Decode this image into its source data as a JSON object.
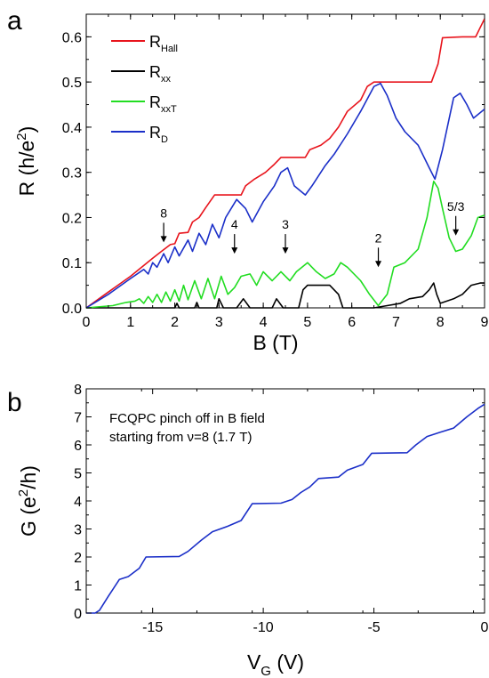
{
  "panel_a": {
    "label": "a",
    "legend": [
      {
        "name": "R",
        "sub": "Hall",
        "color": "#e8141c"
      },
      {
        "name": "R",
        "sub": "xx",
        "color": "#000000"
      },
      {
        "name": "R",
        "sub": "xxT",
        "color": "#22dd22"
      },
      {
        "name": "R",
        "sub": "D",
        "color": "#1b2fc8"
      }
    ],
    "annotations": [
      {
        "text": "8",
        "x": 1.75,
        "tip": 0.145
      },
      {
        "text": "4",
        "x": 3.35,
        "tip": 0.12
      },
      {
        "text": "3",
        "x": 4.5,
        "tip": 0.12
      },
      {
        "text": "2",
        "x": 6.6,
        "tip": 0.09
      },
      {
        "text": "5/3",
        "x": 8.35,
        "tip": 0.16
      }
    ]
  },
  "panel_b": {
    "label": "b",
    "note_line1": "FCQPC pinch off in B field",
    "note_line2": "starting from ν=8 (1.7 T)"
  },
  "chart_data": [
    {
      "type": "line",
      "xlabel": "B (T)",
      "ylabel_main": "R (h/e",
      "ylabel_sup": "2",
      "ylabel_end": ")",
      "xlim": [
        0,
        9
      ],
      "ylim": [
        0,
        0.65
      ],
      "xticks": [
        0,
        1,
        2,
        3,
        4,
        5,
        6,
        7,
        8,
        9
      ],
      "yticks": [
        0.0,
        0.1,
        0.2,
        0.3,
        0.4,
        0.5,
        0.6
      ],
      "series": [
        {
          "name": "RHall",
          "color": "#e8141c",
          "points": [
            [
              0,
              0
            ],
            [
              0.5,
              0.035
            ],
            [
              1.0,
              0.07
            ],
            [
              1.5,
              0.11
            ],
            [
              1.7,
              0.125
            ],
            [
              1.9,
              0.14
            ],
            [
              2.0,
              0.142
            ],
            [
              2.1,
              0.165
            ],
            [
              2.3,
              0.167
            ],
            [
              2.4,
              0.19
            ],
            [
              2.55,
              0.2
            ],
            [
              2.7,
              0.222
            ],
            [
              2.9,
              0.25
            ],
            [
              3.5,
              0.25
            ],
            [
              3.6,
              0.27
            ],
            [
              3.8,
              0.285
            ],
            [
              4.05,
              0.3
            ],
            [
              4.25,
              0.318
            ],
            [
              4.4,
              0.333
            ],
            [
              4.95,
              0.333
            ],
            [
              5.05,
              0.35
            ],
            [
              5.3,
              0.36
            ],
            [
              5.5,
              0.375
            ],
            [
              5.7,
              0.4
            ],
            [
              5.9,
              0.435
            ],
            [
              6.2,
              0.46
            ],
            [
              6.35,
              0.49
            ],
            [
              6.5,
              0.5
            ],
            [
              7.0,
              0.5
            ],
            [
              7.5,
              0.5
            ],
            [
              7.8,
              0.5
            ],
            [
              7.95,
              0.54
            ],
            [
              8.05,
              0.598
            ],
            [
              8.5,
              0.6
            ],
            [
              8.8,
              0.6
            ],
            [
              8.9,
              0.62
            ],
            [
              9.0,
              0.64
            ]
          ]
        },
        {
          "name": "Rxx",
          "color": "#000000",
          "points": [
            [
              0,
              0
            ],
            [
              2.0,
              0
            ],
            [
              2.05,
              0.01
            ],
            [
              2.1,
              0
            ],
            [
              2.45,
              0
            ],
            [
              2.5,
              0.012
            ],
            [
              2.55,
              0
            ],
            [
              2.95,
              0
            ],
            [
              3.0,
              0.02
            ],
            [
              3.1,
              0
            ],
            [
              3.4,
              0
            ],
            [
              3.55,
              0.02
            ],
            [
              3.7,
              0
            ],
            [
              4.2,
              0
            ],
            [
              4.3,
              0.02
            ],
            [
              4.45,
              0
            ],
            [
              4.8,
              0
            ],
            [
              4.9,
              0.04
            ],
            [
              5.0,
              0.05
            ],
            [
              5.5,
              0.05
            ],
            [
              5.7,
              0.03
            ],
            [
              5.8,
              0
            ],
            [
              6.5,
              0
            ],
            [
              6.8,
              0.005
            ],
            [
              7.1,
              0.01
            ],
            [
              7.3,
              0.02
            ],
            [
              7.6,
              0.025
            ],
            [
              7.75,
              0.04
            ],
            [
              7.85,
              0.055
            ],
            [
              7.92,
              0.03
            ],
            [
              8.0,
              0.01
            ],
            [
              8.3,
              0.02
            ],
            [
              8.5,
              0.03
            ],
            [
              8.7,
              0.05
            ],
            [
              8.9,
              0.055
            ],
            [
              9.0,
              0.055
            ]
          ]
        },
        {
          "name": "RxxT",
          "color": "#22dd22",
          "points": [
            [
              0,
              0
            ],
            [
              0.6,
              0.005
            ],
            [
              0.9,
              0.012
            ],
            [
              1.1,
              0.015
            ],
            [
              1.2,
              0.02
            ],
            [
              1.3,
              0.01
            ],
            [
              1.4,
              0.025
            ],
            [
              1.5,
              0.012
            ],
            [
              1.6,
              0.03
            ],
            [
              1.7,
              0.012
            ],
            [
              1.8,
              0.035
            ],
            [
              1.9,
              0.015
            ],
            [
              2.0,
              0.04
            ],
            [
              2.1,
              0.015
            ],
            [
              2.2,
              0.05
            ],
            [
              2.3,
              0.018
            ],
            [
              2.45,
              0.06
            ],
            [
              2.6,
              0.02
            ],
            [
              2.75,
              0.065
            ],
            [
              2.9,
              0.02
            ],
            [
              3.05,
              0.07
            ],
            [
              3.2,
              0.03
            ],
            [
              3.35,
              0.045
            ],
            [
              3.5,
              0.07
            ],
            [
              3.7,
              0.075
            ],
            [
              3.85,
              0.05
            ],
            [
              4.0,
              0.08
            ],
            [
              4.2,
              0.06
            ],
            [
              4.4,
              0.08
            ],
            [
              4.6,
              0.06
            ],
            [
              4.75,
              0.08
            ],
            [
              5.0,
              0.1
            ],
            [
              5.2,
              0.08
            ],
            [
              5.4,
              0.065
            ],
            [
              5.6,
              0.075
            ],
            [
              5.75,
              0.1
            ],
            [
              5.9,
              0.09
            ],
            [
              6.2,
              0.06
            ],
            [
              6.4,
              0.03
            ],
            [
              6.6,
              0.005
            ],
            [
              6.8,
              0.03
            ],
            [
              6.95,
              0.09
            ],
            [
              7.2,
              0.1
            ],
            [
              7.5,
              0.13
            ],
            [
              7.7,
              0.2
            ],
            [
              7.85,
              0.28
            ],
            [
              7.95,
              0.265
            ],
            [
              8.05,
              0.22
            ],
            [
              8.2,
              0.155
            ],
            [
              8.35,
              0.125
            ],
            [
              8.5,
              0.13
            ],
            [
              8.7,
              0.16
            ],
            [
              8.85,
              0.2
            ],
            [
              9.0,
              0.205
            ]
          ]
        },
        {
          "name": "RD",
          "color": "#1b2fc8",
          "points": [
            [
              0,
              0
            ],
            [
              0.5,
              0.03
            ],
            [
              1.0,
              0.065
            ],
            [
              1.3,
              0.085
            ],
            [
              1.4,
              0.075
            ],
            [
              1.5,
              0.1
            ],
            [
              1.6,
              0.09
            ],
            [
              1.75,
              0.12
            ],
            [
              1.85,
              0.1
            ],
            [
              2.0,
              0.135
            ],
            [
              2.1,
              0.115
            ],
            [
              2.3,
              0.15
            ],
            [
              2.4,
              0.125
            ],
            [
              2.55,
              0.165
            ],
            [
              2.7,
              0.14
            ],
            [
              2.85,
              0.185
            ],
            [
              3.0,
              0.155
            ],
            [
              3.15,
              0.2
            ],
            [
              3.4,
              0.24
            ],
            [
              3.6,
              0.22
            ],
            [
              3.75,
              0.19
            ],
            [
              4.0,
              0.235
            ],
            [
              4.25,
              0.27
            ],
            [
              4.4,
              0.3
            ],
            [
              4.55,
              0.31
            ],
            [
              4.7,
              0.27
            ],
            [
              4.95,
              0.25
            ],
            [
              5.1,
              0.27
            ],
            [
              5.4,
              0.315
            ],
            [
              5.6,
              0.34
            ],
            [
              5.9,
              0.385
            ],
            [
              6.2,
              0.435
            ],
            [
              6.5,
              0.49
            ],
            [
              6.65,
              0.497
            ],
            [
              6.8,
              0.47
            ],
            [
              7.0,
              0.42
            ],
            [
              7.2,
              0.39
            ],
            [
              7.5,
              0.36
            ],
            [
              7.75,
              0.31
            ],
            [
              7.88,
              0.285
            ],
            [
              8.05,
              0.35
            ],
            [
              8.3,
              0.465
            ],
            [
              8.45,
              0.475
            ],
            [
              8.6,
              0.45
            ],
            [
              8.75,
              0.42
            ],
            [
              9.0,
              0.44
            ]
          ]
        }
      ]
    },
    {
      "type": "line",
      "xlabel_main": "V",
      "xlabel_sub": "G",
      "xlabel_end": " (V)",
      "ylabel_main": "G (e",
      "ylabel_sup": "2",
      "ylabel_end": "/h)",
      "xlim": [
        -18,
        0
      ],
      "ylim": [
        0,
        8
      ],
      "xticks": [
        -15,
        -10,
        -5,
        0
      ],
      "yticks": [
        0,
        1,
        2,
        3,
        4,
        5,
        6,
        7,
        8
      ],
      "series": [
        {
          "name": "G",
          "color": "#1b2fc8",
          "points": [
            [
              -18,
              0
            ],
            [
              -17.6,
              0
            ],
            [
              -17.4,
              0.1
            ],
            [
              -17.0,
              0.6
            ],
            [
              -16.5,
              1.2
            ],
            [
              -16.1,
              1.3
            ],
            [
              -15.6,
              1.6
            ],
            [
              -15.3,
              2.0
            ],
            [
              -13.8,
              2.02
            ],
            [
              -13.4,
              2.2
            ],
            [
              -12.8,
              2.6
            ],
            [
              -12.3,
              2.9
            ],
            [
              -11.6,
              3.1
            ],
            [
              -11.0,
              3.3
            ],
            [
              -10.5,
              3.9
            ],
            [
              -9.2,
              3.92
            ],
            [
              -8.7,
              4.05
            ],
            [
              -8.3,
              4.3
            ],
            [
              -7.9,
              4.5
            ],
            [
              -7.5,
              4.8
            ],
            [
              -6.6,
              4.85
            ],
            [
              -6.2,
              5.1
            ],
            [
              -5.5,
              5.3
            ],
            [
              -5.1,
              5.7
            ],
            [
              -3.5,
              5.72
            ],
            [
              -3.1,
              6.0
            ],
            [
              -2.6,
              6.3
            ],
            [
              -2.0,
              6.45
            ],
            [
              -1.4,
              6.6
            ],
            [
              -0.8,
              7.0
            ],
            [
              -0.3,
              7.3
            ],
            [
              0,
              7.45
            ]
          ]
        }
      ]
    }
  ]
}
